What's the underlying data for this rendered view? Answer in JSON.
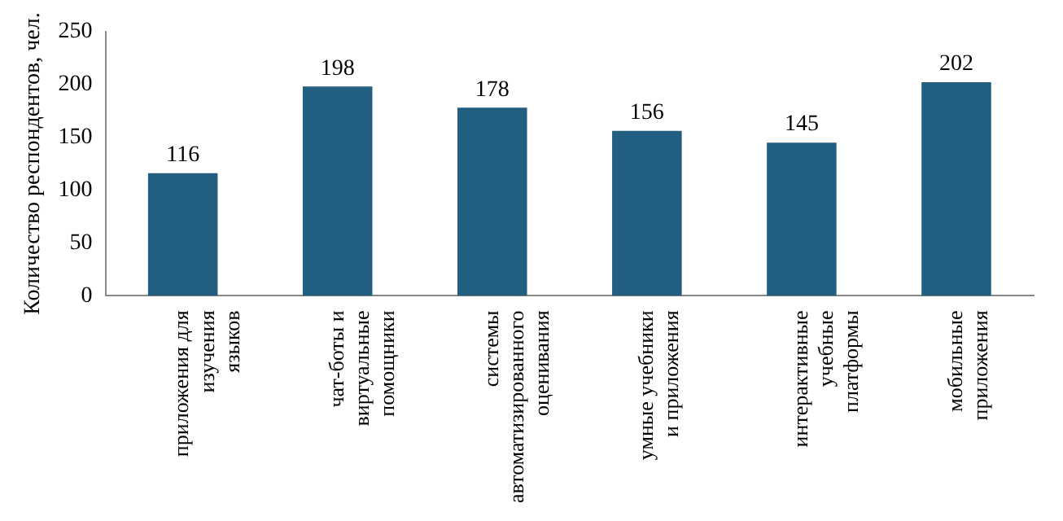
{
  "chart_data": {
    "type": "bar",
    "ylabel": "Количество респондентов, чел.",
    "categories": [
      "приложения для изучения языков",
      "чат-боты и виртуальные помощники",
      "системы автоматизированного оценивания",
      "умные учебники и приложения",
      "интерактивные учебные платформы",
      "мобильные приложения"
    ],
    "values": [
      116,
      198,
      178,
      156,
      145,
      202
    ],
    "color": "#215e80",
    "ylim": [
      0,
      250
    ],
    "yticks": [
      0,
      50,
      100,
      150,
      200,
      250
    ],
    "grid": false,
    "legend": false,
    "data_labels": true
  }
}
